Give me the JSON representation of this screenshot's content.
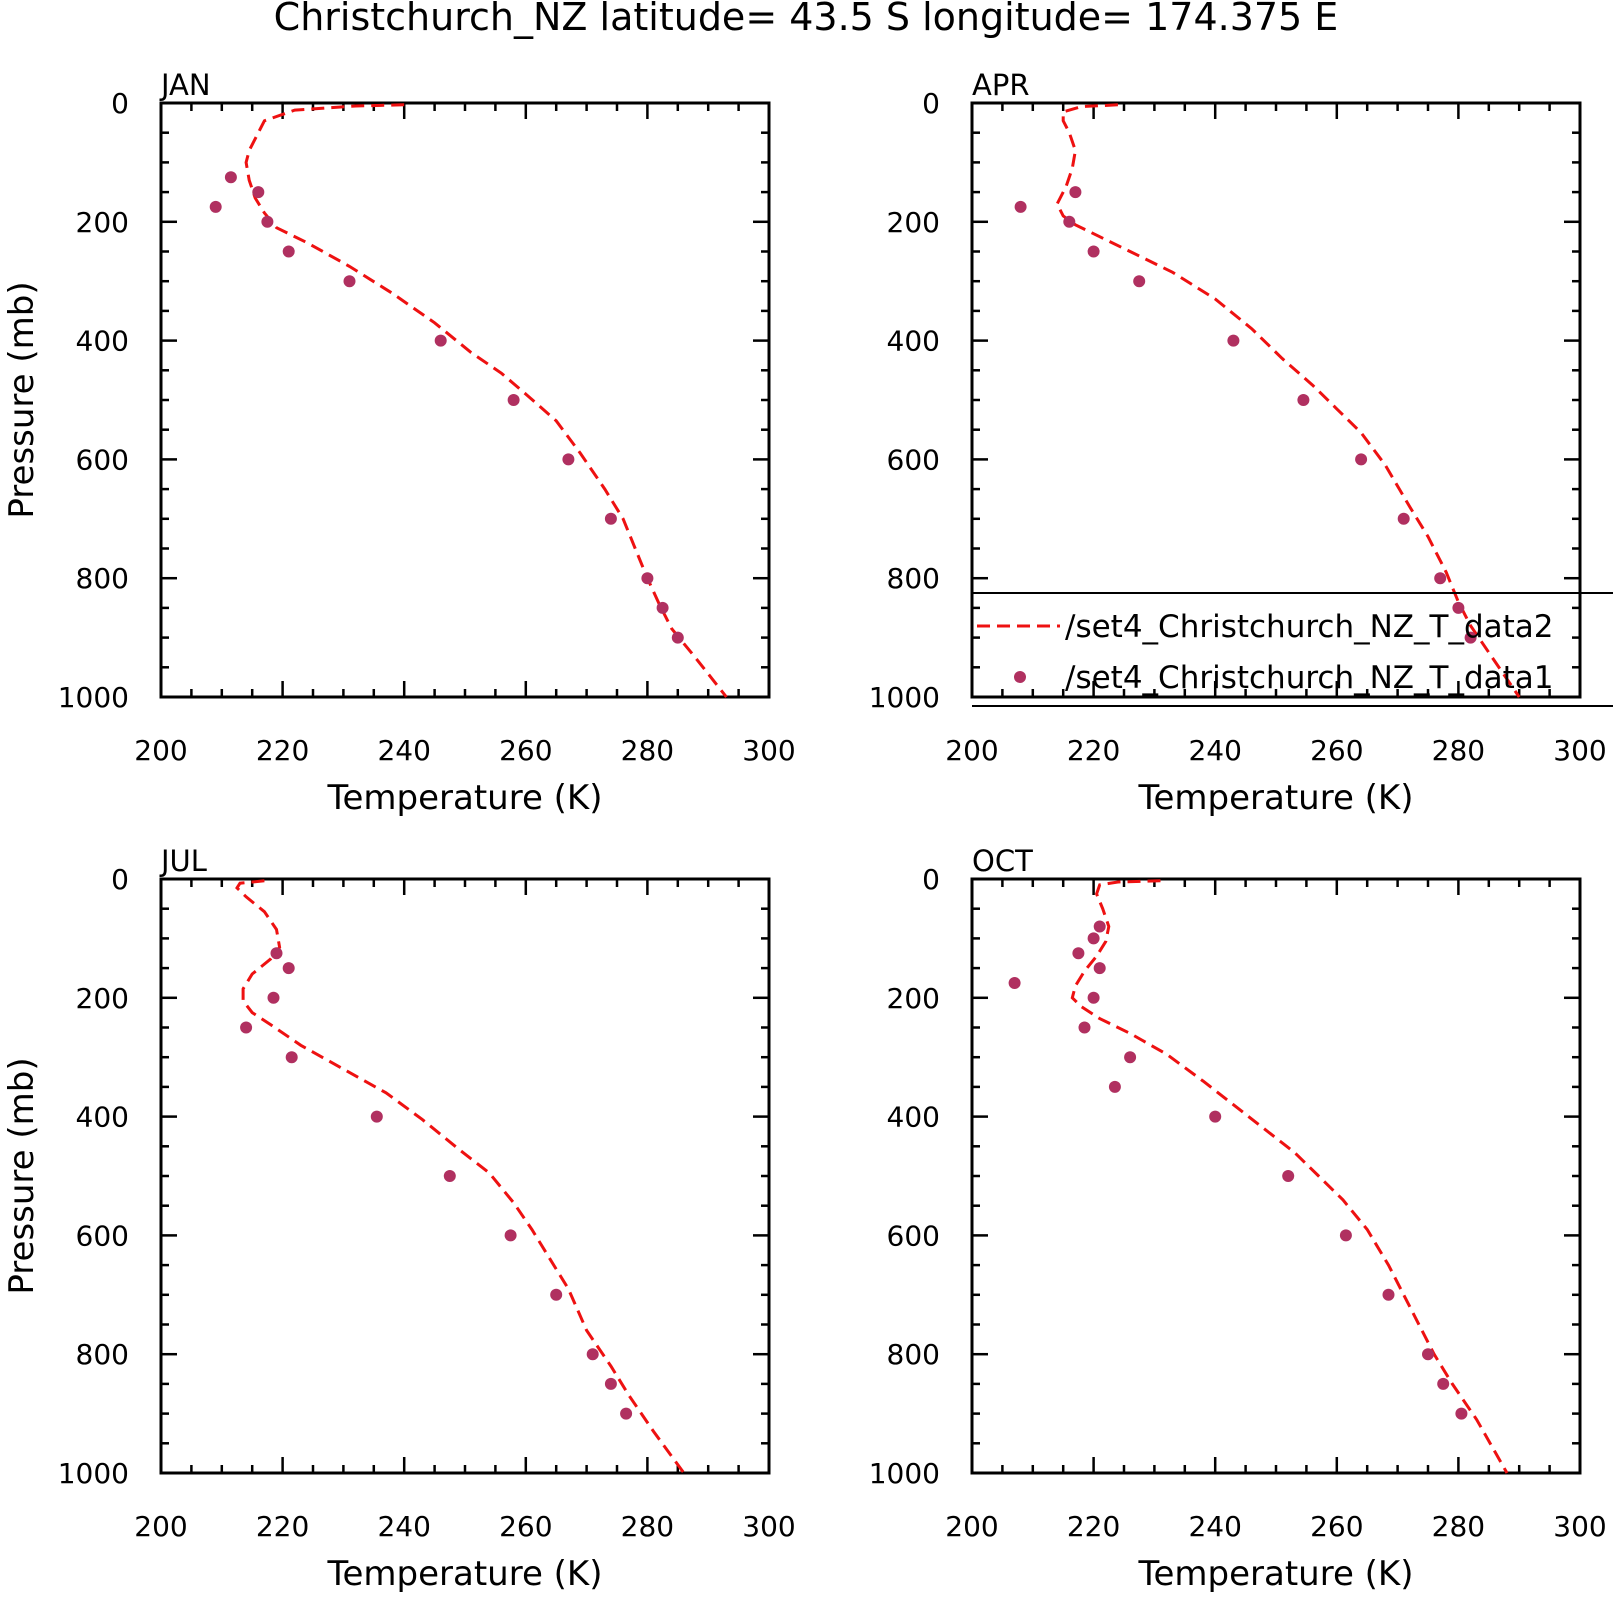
{
  "title": "Christchurch_NZ  latitude= 43.5 S longitude= 174.375 E",
  "colors": {
    "model": "#ee1111",
    "obs": "#b03060"
  },
  "legend": {
    "panel": 1,
    "entries": [
      {
        "label": "/set4_Christchurch_NZ_T_data2",
        "style": "dashed-line",
        "color": "#ee1111"
      },
      {
        "label": "/set4_Christchurch_NZ_T_data1",
        "style": "dot",
        "color": "#b03060"
      }
    ]
  },
  "chart_data": [
    {
      "type": "line",
      "panel_label": "JAN",
      "xlabel": "Temperature (K)",
      "ylabel": "Pressure (mb)",
      "xlim": [
        200,
        300
      ],
      "ylim": [
        1000,
        0
      ],
      "xticks": [
        "200",
        "220",
        "240",
        "260",
        "280",
        "300"
      ],
      "yticks": [
        "0",
        "200",
        "400",
        "600",
        "800",
        "1000"
      ],
      "series": [
        {
          "name": "/set4_Christchurch_NZ_T_data2",
          "kind": "line",
          "points": [
            [
              240,
              3
            ],
            [
              232,
              5
            ],
            [
              222,
              12
            ],
            [
              217,
              30
            ],
            [
              216,
              50
            ],
            [
              214.5,
              80
            ],
            [
              214,
              100
            ],
            [
              214.5,
              130
            ],
            [
              215.5,
              160
            ],
            [
              217,
              185
            ],
            [
              219,
              210
            ],
            [
              224,
              235
            ],
            [
              231,
              275
            ],
            [
              238,
              320
            ],
            [
              245,
              370
            ],
            [
              251,
              420
            ],
            [
              256,
              455
            ],
            [
              260,
              490
            ],
            [
              265,
              535
            ],
            [
              269,
              590
            ],
            [
              273,
              650
            ],
            [
              276,
              700
            ],
            [
              278,
              750
            ],
            [
              280,
              800
            ],
            [
              282,
              845
            ],
            [
              284,
              885
            ],
            [
              288,
              935
            ],
            [
              293,
              1000
            ]
          ]
        },
        {
          "name": "/set4_Christchurch_NZ_T_data1",
          "kind": "scatter",
          "points": [
            [
              211.5,
              125
            ],
            [
              216,
              150
            ],
            [
              209,
              175
            ],
            [
              217.5,
              200
            ],
            [
              221,
              250
            ],
            [
              231,
              300
            ],
            [
              246,
              400
            ],
            [
              258,
              500
            ],
            [
              267,
              600
            ],
            [
              274,
              700
            ],
            [
              280,
              800
            ],
            [
              282.5,
              850
            ],
            [
              285,
              900
            ]
          ]
        }
      ]
    },
    {
      "type": "line",
      "panel_label": "APR",
      "xlabel": "Temperature (K)",
      "ylabel": "",
      "xlim": [
        200,
        300
      ],
      "ylim": [
        1000,
        0
      ],
      "xticks": [
        "200",
        "220",
        "240",
        "260",
        "280",
        "300"
      ],
      "yticks": [
        "0",
        "200",
        "400",
        "600",
        "800",
        "1000"
      ],
      "series": [
        {
          "name": "/set4_Christchurch_NZ_T_data2",
          "kind": "line",
          "points": [
            [
              224,
              3
            ],
            [
              218,
              6
            ],
            [
              215,
              15
            ],
            [
              215,
              30
            ],
            [
              216,
              50
            ],
            [
              217,
              80
            ],
            [
              216.5,
              110
            ],
            [
              215.5,
              140
            ],
            [
              214,
              170
            ],
            [
              215,
              190
            ],
            [
              217,
              205
            ],
            [
              221,
              225
            ],
            [
              226,
              250
            ],
            [
              233,
              285
            ],
            [
              240,
              330
            ],
            [
              246,
              380
            ],
            [
              251,
              430
            ],
            [
              256,
              475
            ],
            [
              260,
              515
            ],
            [
              264,
              555
            ],
            [
              268,
              610
            ],
            [
              272,
              680
            ],
            [
              275,
              730
            ],
            [
              278,
              790
            ],
            [
              280,
              840
            ],
            [
              282,
              880
            ],
            [
              285,
              925
            ],
            [
              290,
              1000
            ]
          ]
        },
        {
          "name": "/set4_Christchurch_NZ_T_data1",
          "kind": "scatter",
          "points": [
            [
              217,
              150
            ],
            [
              208,
              175
            ],
            [
              216,
              200
            ],
            [
              220,
              250
            ],
            [
              227.5,
              300
            ],
            [
              243,
              400
            ],
            [
              254.5,
              500
            ],
            [
              264,
              600
            ],
            [
              271,
              700
            ],
            [
              277,
              800
            ],
            [
              280,
              850
            ],
            [
              282,
              900
            ]
          ]
        }
      ]
    },
    {
      "type": "line",
      "panel_label": "JUL",
      "xlabel": "Temperature (K)",
      "ylabel": "Pressure (mb)",
      "xlim": [
        200,
        300
      ],
      "ylim": [
        1000,
        0
      ],
      "xticks": [
        "200",
        "220",
        "240",
        "260",
        "280",
        "300"
      ],
      "yticks": [
        "0",
        "200",
        "400",
        "600",
        "800",
        "1000"
      ],
      "series": [
        {
          "name": "/set4_Christchurch_NZ_T_data2",
          "kind": "line",
          "points": [
            [
              217,
              3
            ],
            [
              213,
              7
            ],
            [
              212.5,
              15
            ],
            [
              214,
              30
            ],
            [
              217,
              55
            ],
            [
              219,
              85
            ],
            [
              219.5,
              115
            ],
            [
              218,
              135
            ],
            [
              215,
              160
            ],
            [
              213.5,
              185
            ],
            [
              213.5,
              205
            ],
            [
              215,
              225
            ],
            [
              218,
              245
            ],
            [
              223,
              280
            ],
            [
              230,
              320
            ],
            [
              237,
              360
            ],
            [
              243,
              405
            ],
            [
              249,
              455
            ],
            [
              254,
              495
            ],
            [
              258,
              545
            ],
            [
              261,
              590
            ],
            [
              264,
              640
            ],
            [
              267,
              690
            ],
            [
              270,
              760
            ],
            [
              274,
              820
            ],
            [
              277,
              870
            ],
            [
              281,
              930
            ],
            [
              286,
              1000
            ]
          ]
        },
        {
          "name": "/set4_Christchurch_NZ_T_data1",
          "kind": "scatter",
          "points": [
            [
              219,
              125
            ],
            [
              221,
              150
            ],
            [
              218.5,
              200
            ],
            [
              214,
              250
            ],
            [
              221.5,
              300
            ],
            [
              235.5,
              400
            ],
            [
              247.5,
              500
            ],
            [
              257.5,
              600
            ],
            [
              265,
              700
            ],
            [
              271,
              800
            ],
            [
              274,
              850
            ],
            [
              276.5,
              900
            ]
          ]
        }
      ]
    },
    {
      "type": "line",
      "panel_label": "OCT",
      "xlabel": "Temperature (K)",
      "ylabel": "",
      "xlim": [
        200,
        300
      ],
      "ylim": [
        1000,
        0
      ],
      "xticks": [
        "200",
        "220",
        "240",
        "260",
        "280",
        "300"
      ],
      "yticks": [
        "0",
        "200",
        "400",
        "600",
        "800",
        "1000"
      ],
      "series": [
        {
          "name": "/set4_Christchurch_NZ_T_data2",
          "kind": "line",
          "points": [
            [
              231,
              3
            ],
            [
              224,
              5
            ],
            [
              221,
              10
            ],
            [
              220.5,
              25
            ],
            [
              221.5,
              50
            ],
            [
              222.5,
              80
            ],
            [
              222,
              105
            ],
            [
              220.5,
              130
            ],
            [
              218.5,
              155
            ],
            [
              217,
              180
            ],
            [
              216.5,
              200
            ],
            [
              218,
              215
            ],
            [
              221,
              235
            ],
            [
              226,
              260
            ],
            [
              232,
              295
            ],
            [
              238,
              340
            ],
            [
              243,
              380
            ],
            [
              248,
              420
            ],
            [
              253,
              460
            ],
            [
              257,
              500
            ],
            [
              261,
              540
            ],
            [
              265,
              590
            ],
            [
              268.5,
              650
            ],
            [
              272,
              720
            ],
            [
              276,
              800
            ],
            [
              279,
              850
            ],
            [
              283,
              910
            ],
            [
              288,
              1000
            ]
          ]
        },
        {
          "name": "/set4_Christchurch_NZ_T_data1",
          "kind": "scatter",
          "points": [
            [
              221,
              80
            ],
            [
              220,
              100
            ],
            [
              217.5,
              125
            ],
            [
              221,
              150
            ],
            [
              207,
              175
            ],
            [
              220,
              200
            ],
            [
              218.5,
              250
            ],
            [
              226,
              300
            ],
            [
              223.5,
              350
            ],
            [
              240,
              400
            ],
            [
              252,
              500
            ],
            [
              261.5,
              600
            ],
            [
              268.5,
              700
            ],
            [
              275,
              800
            ],
            [
              277.5,
              850
            ],
            [
              280.5,
              900
            ]
          ]
        }
      ]
    }
  ]
}
